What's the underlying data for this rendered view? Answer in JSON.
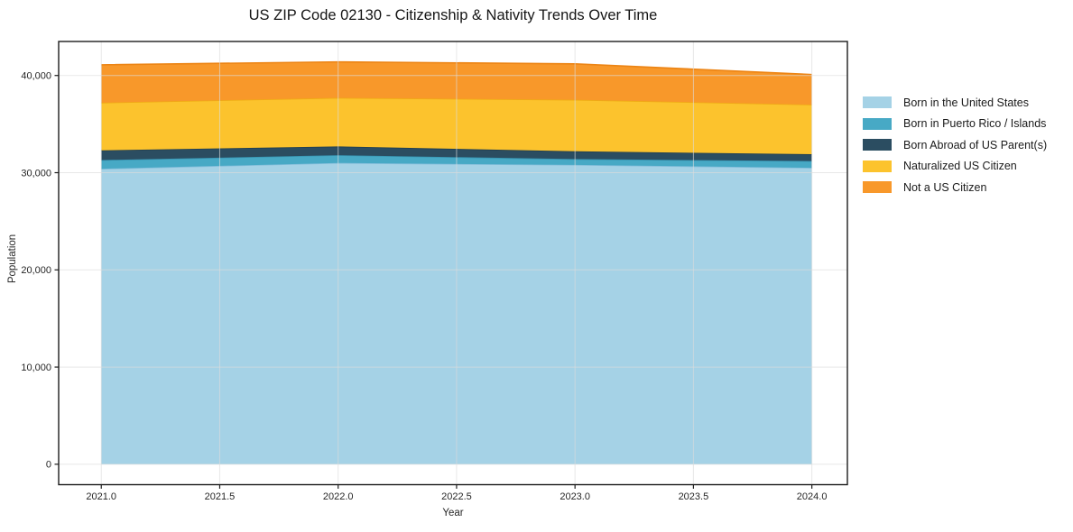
{
  "chart_data": {
    "type": "area",
    "stacked": true,
    "title": "US ZIP Code 02130 - Citizenship & Nativity Trends Over Time",
    "xlabel": "Year",
    "ylabel": "Population",
    "x": [
      2021.0,
      2022.0,
      2023.0,
      2024.0
    ],
    "series": [
      {
        "id": "born-us",
        "name": "Born in the United States",
        "color": "#a5d2e6",
        "edge_color": "#84bedb",
        "values": [
          30400,
          31000,
          30800,
          30500
        ]
      },
      {
        "id": "puerto-rico-islands",
        "name": "Born in Puerto Rico / Islands",
        "color": "#47a9c5",
        "edge_color": "#3795b2",
        "values": [
          900,
          800,
          600,
          700
        ]
      },
      {
        "id": "born-abroad",
        "name": "Born Abroad of US Parent(s)",
        "color": "#2b4d61",
        "edge_color": "#223f50",
        "values": [
          1000,
          900,
          800,
          700
        ]
      },
      {
        "id": "naturalized",
        "name": "Naturalized US Citizen",
        "color": "#fcc32d",
        "edge_color": "#efab14",
        "values": [
          4900,
          5000,
          5300,
          5100
        ]
      },
      {
        "id": "not-citizen",
        "name": "Not a US Citizen",
        "color": "#f8982a",
        "edge_color": "#ec8414",
        "values": [
          3900,
          3700,
          3700,
          3100
        ]
      }
    ],
    "totals": [
      41100,
      41400,
      41200,
      40100
    ],
    "xtick_labels": [
      "2021.0",
      "2021.5",
      "2022.0",
      "2022.5",
      "2023.0",
      "2023.5",
      "2024.0"
    ],
    "ytick_labels": [
      "0",
      "10,000",
      "20,000",
      "30,000",
      "40,000"
    ],
    "xlim": [
      2020.82,
      2024.15
    ],
    "ylim": [
      -2100,
      43500
    ],
    "grid": true,
    "legend_position": "right-outside",
    "colors": {
      "background": "#ffffff",
      "grid_color": "rgba(219,219,219,0.65)",
      "spine_color": "#1c1c1c",
      "text_color": "#262626"
    }
  }
}
